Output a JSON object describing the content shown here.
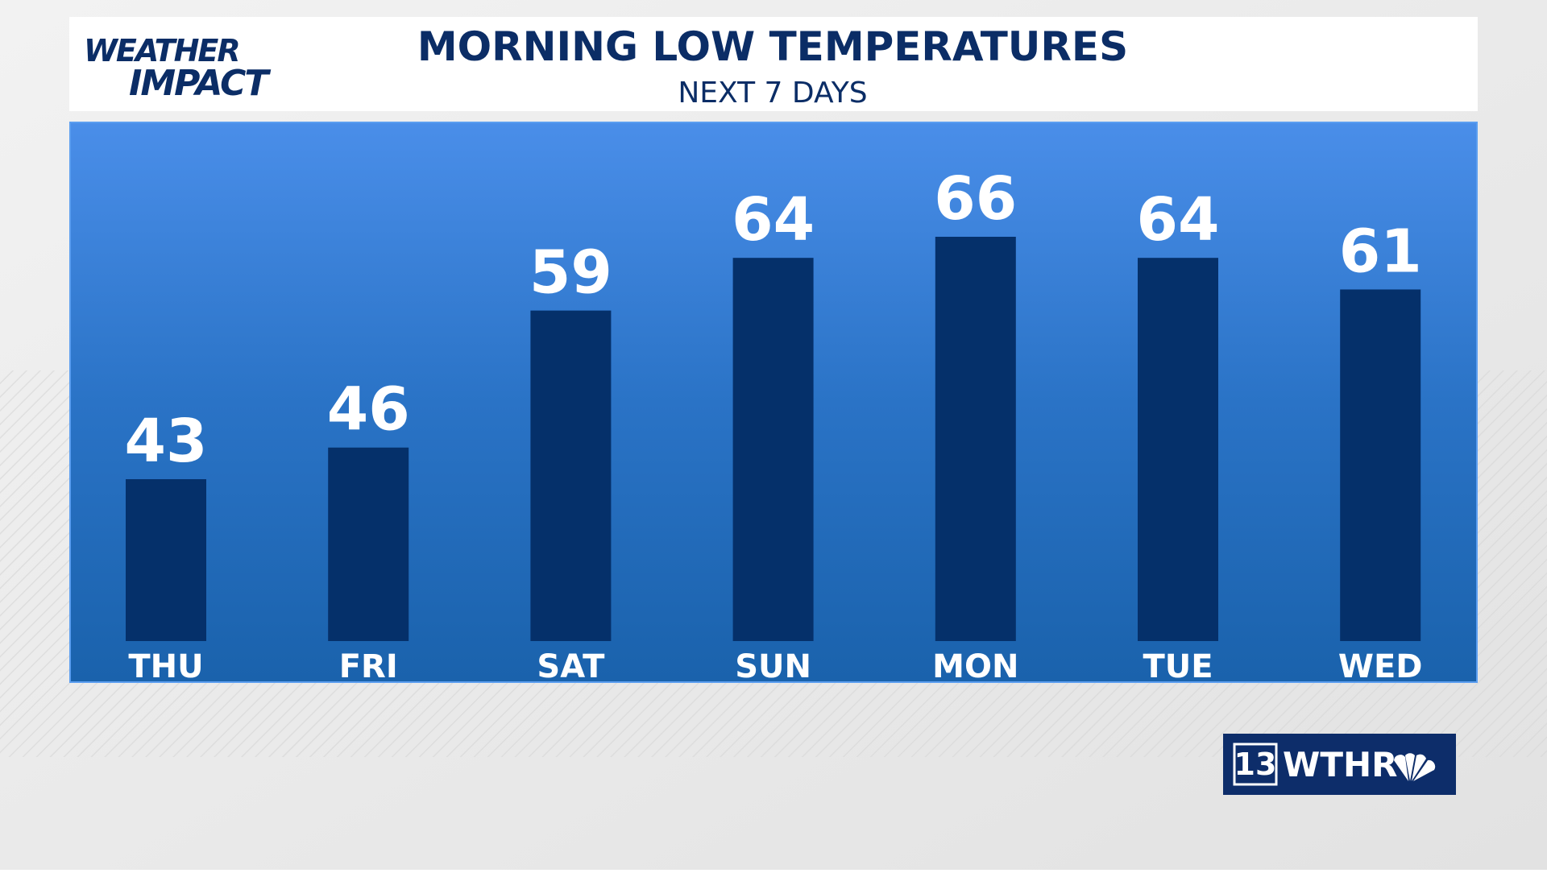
{
  "header": {
    "logo_line1": "WEATHER",
    "logo_line2": "IMPACT"
  },
  "chart_data": {
    "type": "bar",
    "title": "MORNING LOW TEMPERATURES",
    "subtitle": "NEXT 7 DAYS",
    "categories": [
      "THU",
      "FRI",
      "SAT",
      "SUN",
      "MON",
      "TUE",
      "WED"
    ],
    "values": [
      43,
      46,
      59,
      64,
      66,
      64,
      61
    ],
    "color": "#05306a"
  },
  "branding": {
    "channel": "13",
    "station": "WTHR"
  }
}
